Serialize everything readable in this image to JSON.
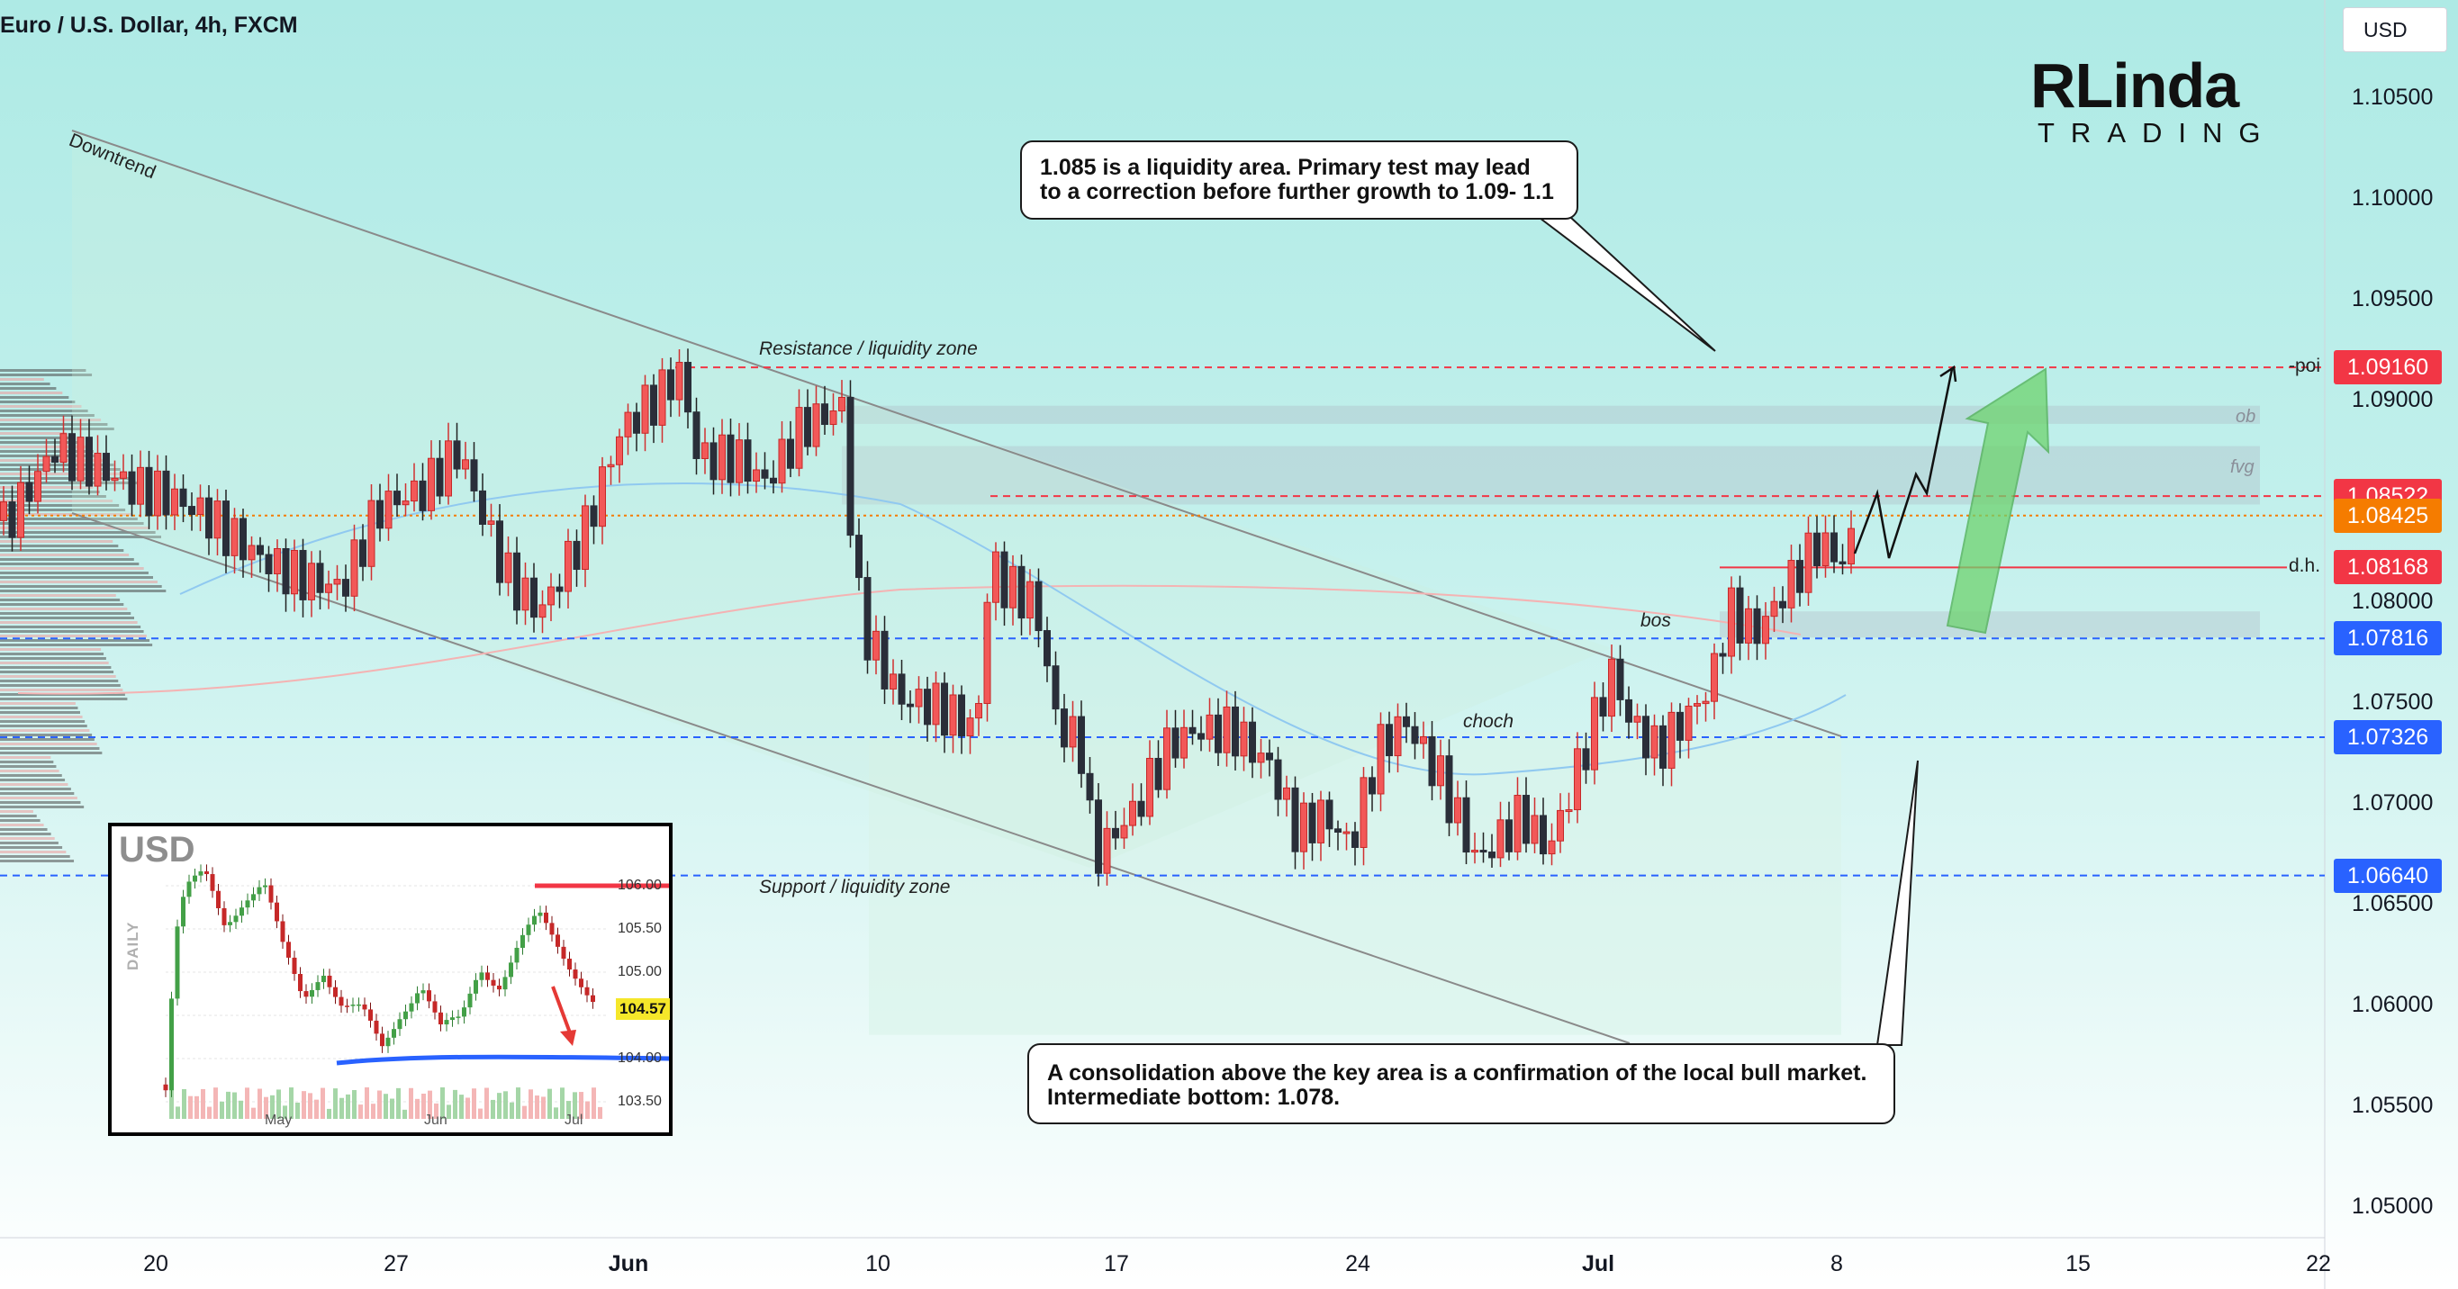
{
  "header": {
    "title": "Euro / U.S. Dollar, 4h, FXCM",
    "currency_button": "USD"
  },
  "logo": {
    "top": "RLinda",
    "bottom": "TRADING"
  },
  "colors": {
    "bull": "#ffffff",
    "bear": "#2a2e39",
    "red_line": "#f23645",
    "blue_line": "#2962ff",
    "orange": "#f57c00",
    "green_arrow": "#66cc66"
  },
  "chart_data": [
    {
      "type": "candlestick",
      "title": "Euro / U.S. Dollar, 4h, FXCM",
      "ylim": [
        1.0465,
        1.109
      ],
      "y_ticks": [
        "1.10500",
        "1.10000",
        "1.09500",
        "1.09000",
        "1.08500",
        "1.08000",
        "1.07500",
        "1.07000",
        "1.06500",
        "1.06000",
        "1.05500",
        "1.05000"
      ],
      "x_ticks": [
        "20",
        "27",
        "Jun",
        "10",
        "17",
        "24",
        "Jul",
        "8",
        "15",
        "22"
      ],
      "grid": false,
      "path_segments": [
        [
          0,
          1.084
        ],
        [
          60,
          1.088
        ],
        [
          150,
          1.085
        ],
        [
          230,
          1.0842
        ],
        [
          320,
          1.082
        ],
        [
          380,
          1.0805
        ],
        [
          420,
          1.084
        ],
        [
          470,
          1.085
        ],
        [
          510,
          1.0875
        ],
        [
          560,
          1.082
        ],
        [
          600,
          1.08
        ],
        [
          650,
          1.0835
        ],
        [
          690,
          1.088
        ],
        [
          730,
          1.0895
        ],
        [
          755,
          1.091
        ],
        [
          775,
          1.087
        ],
        [
          820,
          1.0875
        ],
        [
          850,
          1.0865
        ],
        [
          890,
          1.089
        ],
        [
          935,
          1.0895
        ],
        [
          950,
          1.0805
        ],
        [
          965,
          1.0775
        ],
        [
          1000,
          1.0745
        ],
        [
          1040,
          1.0745
        ],
        [
          1085,
          1.074
        ],
        [
          1100,
          1.083
        ],
        [
          1110,
          1.0815
        ],
        [
          1150,
          1.0805
        ],
        [
          1175,
          1.074
        ],
        [
          1200,
          1.073
        ],
        [
          1215,
          1.067
        ],
        [
          1260,
          1.069
        ],
        [
          1300,
          1.0725
        ],
        [
          1330,
          1.0735
        ],
        [
          1370,
          1.074
        ],
        [
          1410,
          1.0725
        ],
        [
          1440,
          1.069
        ],
        [
          1470,
          1.0695
        ],
        [
          1500,
          1.0675
        ],
        [
          1530,
          1.072
        ],
        [
          1560,
          1.0735
        ],
        [
          1600,
          1.071
        ],
        [
          1640,
          1.0675
        ],
        [
          1690,
          1.07
        ],
        [
          1720,
          1.068
        ],
        [
          1760,
          1.0725
        ],
        [
          1790,
          1.076
        ],
        [
          1810,
          1.0735
        ],
        [
          1840,
          1.072
        ],
        [
          1880,
          1.0745
        ],
        [
          1900,
          1.076
        ],
        [
          1920,
          1.08
        ],
        [
          1950,
          1.079
        ],
        [
          1990,
          1.0815
        ],
        [
          2020,
          1.083
        ],
        [
          2050,
          1.0815
        ],
        [
          2060,
          1.0835
        ]
      ],
      "levels": [
        {
          "value": 1.0916,
          "label": "1.09160",
          "tag": "-poi",
          "color": "#f23645"
        },
        {
          "value": 1.08522,
          "label": "1.08522",
          "color": "#f23645"
        },
        {
          "value": 1.08425,
          "label": "1.08425",
          "color": "#f57c00"
        },
        {
          "value": 1.08168,
          "label": "1.08168",
          "tag": "d.h.",
          "color": "#f23645"
        },
        {
          "value": 1.07816,
          "label": "1.07816",
          "color": "#2962ff"
        },
        {
          "value": 1.07326,
          "label": "1.07326",
          "color": "#2962ff"
        },
        {
          "value": 1.0664,
          "label": "1.06640",
          "color": "#2962ff"
        }
      ],
      "annotations": {
        "downtrend": "Downtrend",
        "resistance": "Resistance / liquidity zone",
        "support": "Support / liquidity zone",
        "choch": "choch",
        "bos": "bos",
        "ob": "ob",
        "fvg": "fvg"
      },
      "callouts": {
        "top": "1.085 is a liquidity area. Primary test may lead\nto a correction before further growth to 1.09- 1.1",
        "bottom": "A consolidation above the key area is a confirmation of the local bull market.\nIntermediate bottom: 1.078."
      }
    },
    {
      "type": "candlestick",
      "title": "USD",
      "side_label": "DAILY",
      "ylim": [
        103.3,
        106.3
      ],
      "y_ticks": [
        "106.00",
        "105.50",
        "105.00",
        "104.50",
        "104.00",
        "103.50"
      ],
      "x_ticks": [
        "May",
        "Jun",
        "Jul"
      ],
      "current_price": "104.57",
      "levels": [
        {
          "value": 106.0,
          "color": "#f23645"
        },
        {
          "value": 103.8,
          "color": "#2962ff"
        }
      ],
      "path": [
        [
          0,
          103.7
        ],
        [
          10,
          105.4
        ],
        [
          20,
          105.9
        ],
        [
          40,
          106.1
        ],
        [
          60,
          105.6
        ],
        [
          80,
          105.9
        ],
        [
          100,
          106.0
        ],
        [
          120,
          105.2
        ],
        [
          140,
          104.7
        ],
        [
          160,
          105.1
        ],
        [
          180,
          104.6
        ],
        [
          200,
          104.5
        ],
        [
          220,
          104.1
        ],
        [
          240,
          104.6
        ],
        [
          260,
          104.9
        ],
        [
          280,
          104.3
        ],
        [
          300,
          104.4
        ],
        [
          320,
          105.1
        ],
        [
          340,
          104.9
        ],
        [
          360,
          105.3
        ],
        [
          380,
          105.6
        ],
        [
          400,
          105.3
        ],
        [
          420,
          105.0
        ],
        [
          440,
          104.6
        ]
      ]
    }
  ]
}
